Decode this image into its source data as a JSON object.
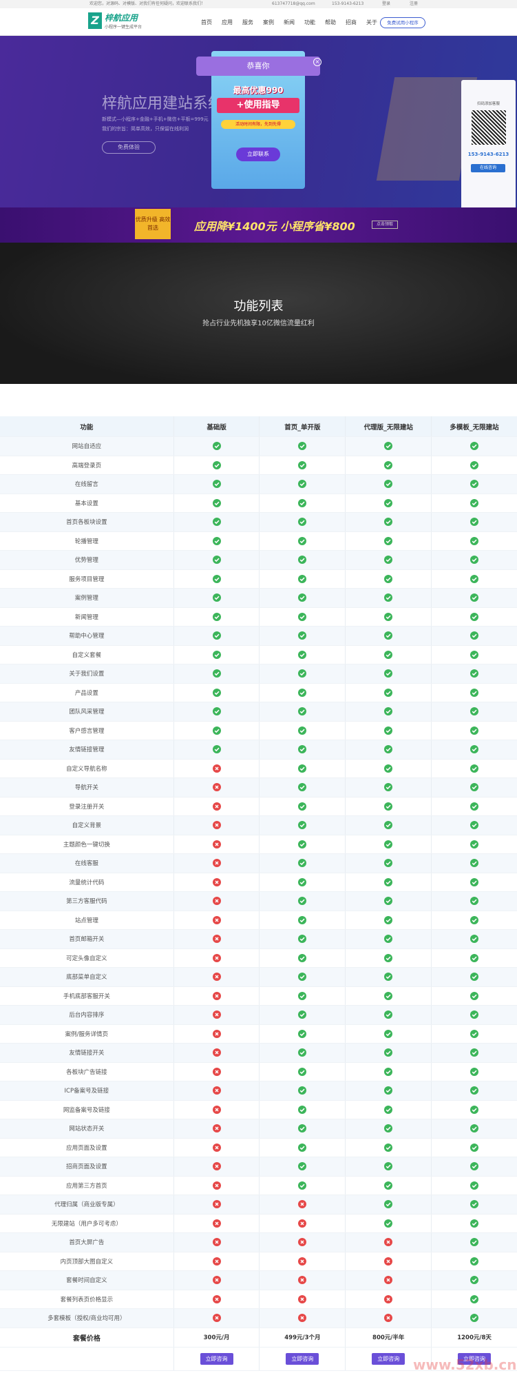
{
  "topbar": {
    "notice": "欢迎您，对源码、对模版、对我们有任何疑问，欢迎联系我们！",
    "email": "613747718@qq.com",
    "phone": "153-9143-6213",
    "login": "登录",
    "register": "注册"
  },
  "nav": {
    "logo": "梓航应用",
    "slogan": "小程序一键生成平台",
    "menu": [
      "首页",
      "应用",
      "服务",
      "案例",
      "新闻",
      "功能",
      "帮助",
      "招商",
      "关于"
    ],
    "cta": "免费试用小程序"
  },
  "banner": {
    "title": "梓航应用建站系统",
    "line1": "新模式—小程序+金融+手机+微信+平板=999元",
    "line2": "我们的宗旨：简单高效，只保留在线利润",
    "button": "免费体验",
    "popup": {
      "head": "恭喜你",
      "offer": "最高优惠990",
      "guide": "+使用指导",
      "note": "活动时间有限，先到先得",
      "button": "立即联系"
    },
    "qr": {
      "caption": "扫码添加客服",
      "phone": "153-9143-6213",
      "button": "在线咨询"
    }
  },
  "strip": {
    "badge": "优质升级 高效首选",
    "text": "应用降¥1400元 小程序省¥800",
    "button": "点击领取"
  },
  "section": {
    "title": "功能列表",
    "subtitle": "抢占行业先机独享10亿微信流量红利"
  },
  "table": {
    "header": [
      "功能",
      "基础版",
      "首页_单开版",
      "代理版_无限建站",
      "多模板_无限建站"
    ],
    "rows": [
      {
        "feature": "网站自适应",
        "support": [
          true,
          true,
          true,
          true
        ]
      },
      {
        "feature": "高端登录页",
        "support": [
          true,
          true,
          true,
          true
        ]
      },
      {
        "feature": "在线留言",
        "support": [
          true,
          true,
          true,
          true
        ]
      },
      {
        "feature": "基本设置",
        "support": [
          true,
          true,
          true,
          true
        ]
      },
      {
        "feature": "首页各板块设置",
        "support": [
          true,
          true,
          true,
          true
        ]
      },
      {
        "feature": "轮播管理",
        "support": [
          true,
          true,
          true,
          true
        ]
      },
      {
        "feature": "优势管理",
        "support": [
          true,
          true,
          true,
          true
        ]
      },
      {
        "feature": "服务项目管理",
        "support": [
          true,
          true,
          true,
          true
        ]
      },
      {
        "feature": "案例管理",
        "support": [
          true,
          true,
          true,
          true
        ]
      },
      {
        "feature": "新闻管理",
        "support": [
          true,
          true,
          true,
          true
        ]
      },
      {
        "feature": "帮助中心管理",
        "support": [
          true,
          true,
          true,
          true
        ]
      },
      {
        "feature": "自定义套餐",
        "support": [
          true,
          true,
          true,
          true
        ]
      },
      {
        "feature": "关于我们设置",
        "support": [
          true,
          true,
          true,
          true
        ]
      },
      {
        "feature": "产品设置",
        "support": [
          true,
          true,
          true,
          true
        ]
      },
      {
        "feature": "团队风采管理",
        "support": [
          true,
          true,
          true,
          true
        ]
      },
      {
        "feature": "客户感言管理",
        "support": [
          true,
          true,
          true,
          true
        ]
      },
      {
        "feature": "友情链接管理",
        "support": [
          true,
          true,
          true,
          true
        ]
      },
      {
        "feature": "自定义导航名称",
        "support": [
          false,
          true,
          true,
          true
        ]
      },
      {
        "feature": "导航开关",
        "support": [
          false,
          true,
          true,
          true
        ]
      },
      {
        "feature": "登录注册开关",
        "support": [
          false,
          true,
          true,
          true
        ]
      },
      {
        "feature": "自定义背景",
        "support": [
          false,
          true,
          true,
          true
        ]
      },
      {
        "feature": "主题颜色一键切换",
        "support": [
          false,
          true,
          true,
          true
        ]
      },
      {
        "feature": "在线客服",
        "support": [
          false,
          true,
          true,
          true
        ]
      },
      {
        "feature": "流量统计代码",
        "support": [
          false,
          true,
          true,
          true
        ]
      },
      {
        "feature": "第三方客服代码",
        "support": [
          false,
          true,
          true,
          true
        ]
      },
      {
        "feature": "站点管理",
        "support": [
          false,
          true,
          true,
          true
        ]
      },
      {
        "feature": "首页邮箱开关",
        "support": [
          false,
          true,
          true,
          true
        ]
      },
      {
        "feature": "可定头像自定义",
        "support": [
          false,
          true,
          true,
          true
        ]
      },
      {
        "feature": "底部菜单自定义",
        "support": [
          false,
          true,
          true,
          true
        ]
      },
      {
        "feature": "手机底部客服开关",
        "support": [
          false,
          true,
          true,
          true
        ]
      },
      {
        "feature": "后台内容排序",
        "support": [
          false,
          true,
          true,
          true
        ]
      },
      {
        "feature": "案例/服务详情页",
        "support": [
          false,
          true,
          true,
          true
        ]
      },
      {
        "feature": "友情链接开关",
        "support": [
          false,
          true,
          true,
          true
        ]
      },
      {
        "feature": "各板块广告链接",
        "support": [
          false,
          true,
          true,
          true
        ]
      },
      {
        "feature": "ICP备案号及链接",
        "support": [
          false,
          true,
          true,
          true
        ]
      },
      {
        "feature": "网监备案号及链接",
        "support": [
          false,
          true,
          true,
          true
        ]
      },
      {
        "feature": "网站状态开关",
        "support": [
          false,
          true,
          true,
          true
        ]
      },
      {
        "feature": "应用页面及设置",
        "support": [
          false,
          true,
          true,
          true
        ]
      },
      {
        "feature": "招商页面及设置",
        "support": [
          false,
          true,
          true,
          true
        ]
      },
      {
        "feature": "应用第三方首页",
        "support": [
          false,
          true,
          true,
          true
        ]
      },
      {
        "feature": "代理归属（商业版专属）",
        "support": [
          false,
          false,
          true,
          true
        ]
      },
      {
        "feature": "无限建站（用户多可考虑）",
        "support": [
          false,
          false,
          true,
          true
        ]
      },
      {
        "feature": "首页大屏广告",
        "support": [
          false,
          false,
          false,
          true
        ]
      },
      {
        "feature": "内页顶部大图自定义",
        "support": [
          false,
          false,
          false,
          true
        ]
      },
      {
        "feature": "套餐时间自定义",
        "support": [
          false,
          false,
          false,
          true
        ]
      },
      {
        "feature": "套餐列表页价格显示",
        "support": [
          false,
          false,
          false,
          true
        ]
      },
      {
        "feature": "多套模板（授权/商业均可用）",
        "support": [
          false,
          false,
          false,
          true
        ]
      }
    ],
    "price_label": "套餐价格",
    "prices": [
      "300元/月",
      "499元/3个月",
      "800元/半年",
      "1200元/8天"
    ],
    "buttons": [
      "立即咨询",
      "立即咨询",
      "立即咨询",
      "立即咨询"
    ]
  },
  "watermark": "www.52xb.cn"
}
